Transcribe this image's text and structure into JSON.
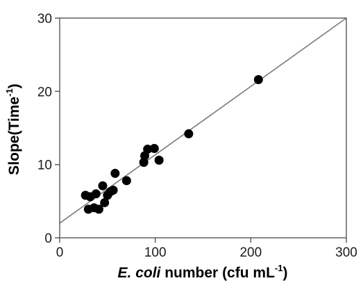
{
  "chart_data": {
    "type": "scatter",
    "title": "",
    "xlabel": {
      "italic": "E. coli",
      "main": " number (cfu mL",
      "sup": "-1",
      "end": ")"
    },
    "ylabel": {
      "main": "Slope(Time",
      "sup": "-1",
      "end": ")"
    },
    "xlim": [
      0,
      300
    ],
    "ylim": [
      0,
      30
    ],
    "xticks": [
      0,
      100,
      200,
      300
    ],
    "yticks": [
      0,
      10,
      20,
      30
    ],
    "xtick_labels": [
      "0",
      "100",
      "200",
      "300"
    ],
    "ytick_labels": [
      "0",
      "10",
      "20",
      "30"
    ],
    "grid": false,
    "legend": "none",
    "marker_color": "#000000",
    "line_color": "#7a7a7a",
    "series": [
      {
        "points": [
          [
            27,
            5.8
          ],
          [
            30,
            3.9
          ],
          [
            32,
            5.6
          ],
          [
            36,
            4.1
          ],
          [
            38,
            6.0
          ],
          [
            41,
            3.9
          ],
          [
            45,
            7.1
          ],
          [
            47,
            4.8
          ],
          [
            50,
            5.8
          ],
          [
            53,
            6.3
          ],
          [
            56,
            6.5
          ],
          [
            58,
            8.8
          ],
          [
            70,
            7.8
          ],
          [
            88,
            10.3
          ],
          [
            89,
            11.2
          ],
          [
            92,
            12.1
          ],
          [
            99,
            12.2
          ],
          [
            104,
            10.6
          ],
          [
            135,
            14.2
          ],
          [
            208,
            21.6
          ]
        ]
      }
    ],
    "fit_line": {
      "x": [
        0,
        300
      ],
      "y": [
        2.0,
        30.0
      ]
    }
  }
}
